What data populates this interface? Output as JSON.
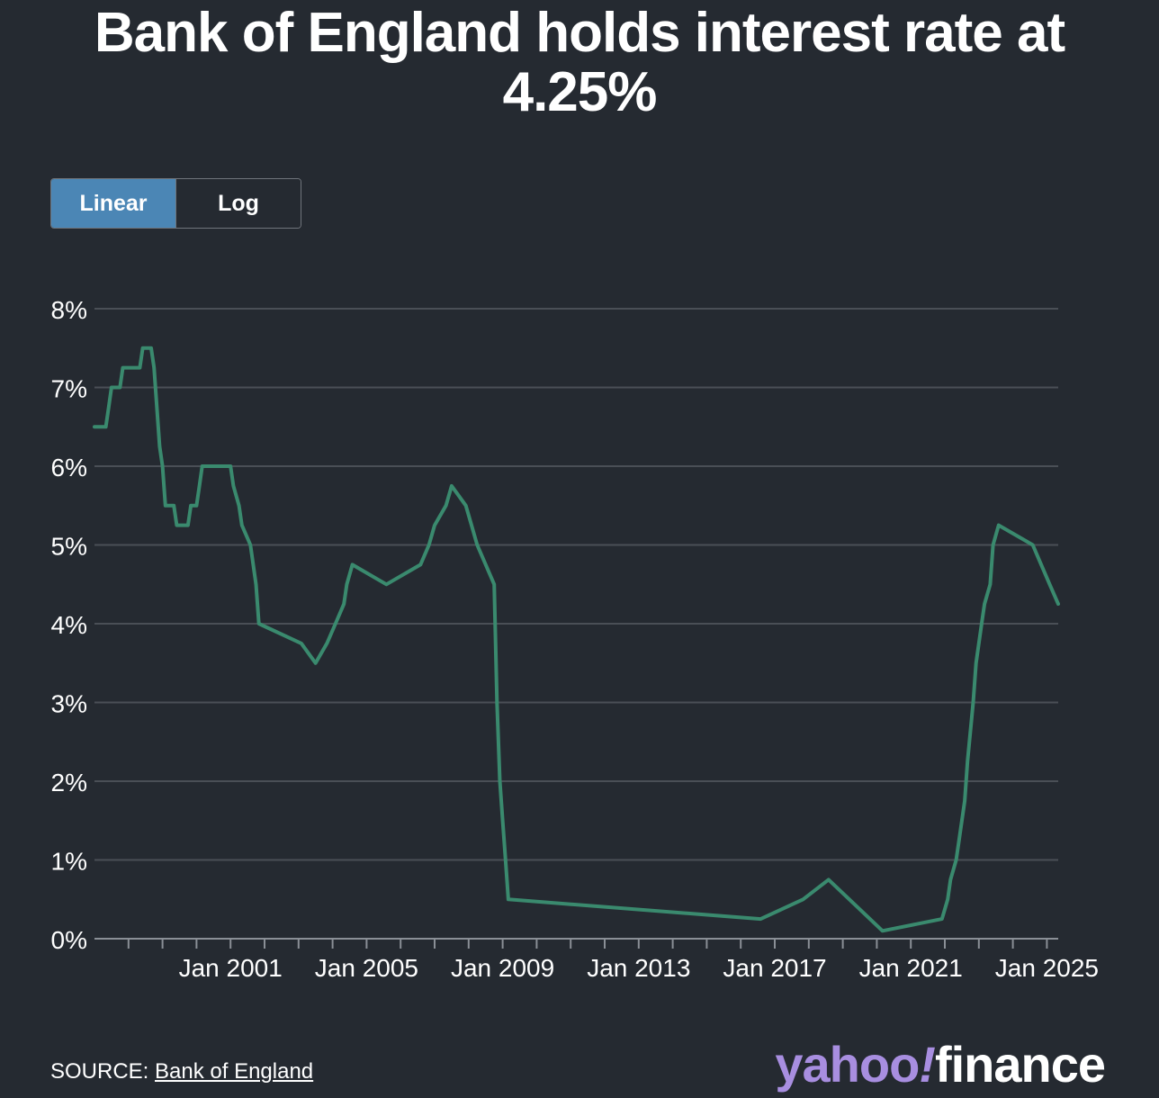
{
  "title": "Bank of England holds interest rate at 4.25%",
  "toggle": {
    "linear_label": "Linear",
    "log_label": "Log",
    "selected": "Linear"
  },
  "source": {
    "prefix": "SOURCE: ",
    "link_text": "Bank of England"
  },
  "logo": {
    "yahoo": "yahoo",
    "bang": "!",
    "finance": "finance"
  },
  "colors": {
    "background": "#252a31",
    "line": "#3a8a6e",
    "grid": "#4a4f56",
    "toggle_active": "#4b86b5",
    "logo_purple": "#a88ee0"
  },
  "chart_data": {
    "type": "line",
    "title": "Bank of England holds interest rate at 4.25%",
    "xlabel": "",
    "ylabel": "",
    "ylim": [
      0,
      8
    ],
    "xlim": [
      "1997-01",
      "2025-05"
    ],
    "yticks": [
      "0%",
      "1%",
      "2%",
      "3%",
      "4%",
      "5%",
      "6%",
      "7%",
      "8%"
    ],
    "xtick_labels": [
      "Jan 2001",
      "Jan 2005",
      "Jan 2009",
      "Jan 2013",
      "Jan 2017",
      "Jan 2021",
      "Jan 2025"
    ],
    "grid": true,
    "legend": "none",
    "series": [
      {
        "x": [
          "1997-01",
          "1997-02",
          "1997-05",
          "1997-06",
          "1997-07",
          "1997-08",
          "1997-10",
          "1997-11",
          "1998-01",
          "1998-05",
          "1998-06",
          "1998-09",
          "1998-10",
          "1998-11",
          "1998-12",
          "1999-01",
          "1999-02",
          "1999-05",
          "1999-06",
          "1999-09",
          "1999-10",
          "1999-11",
          "2000-01",
          "2000-02",
          "2000-03",
          "2001-01",
          "2001-02",
          "2001-04",
          "2001-05",
          "2001-08",
          "2001-09",
          "2001-10",
          "2001-11",
          "2003-02",
          "2003-07",
          "2003-11",
          "2004-02",
          "2004-05",
          "2004-06",
          "2004-08",
          "2005-08",
          "2006-08",
          "2006-11",
          "2007-01",
          "2007-05",
          "2007-07",
          "2007-12",
          "2008-02",
          "2008-04",
          "2008-10",
          "2008-11",
          "2008-12",
          "2009-01",
          "2009-02",
          "2009-03",
          "2016-08",
          "2017-11",
          "2018-08",
          "2020-03",
          "2021-12",
          "2022-02",
          "2022-03",
          "2022-05",
          "2022-06",
          "2022-08",
          "2022-09",
          "2022-11",
          "2022-12",
          "2023-02",
          "2023-03",
          "2023-05",
          "2023-06",
          "2023-08",
          "2024-08",
          "2024-11",
          "2025-02",
          "2025-05"
        ],
        "values": [
          6.5,
          6.5,
          6.5,
          6.75,
          7.0,
          7.0,
          7.0,
          7.25,
          7.25,
          7.25,
          7.5,
          7.5,
          7.25,
          6.75,
          6.25,
          6.0,
          5.5,
          5.5,
          5.25,
          5.25,
          5.25,
          5.5,
          5.5,
          5.75,
          6.0,
          6.0,
          5.75,
          5.5,
          5.25,
          5.0,
          4.75,
          4.5,
          4.0,
          3.75,
          3.5,
          3.75,
          4.0,
          4.25,
          4.5,
          4.75,
          4.5,
          4.75,
          5.0,
          5.25,
          5.5,
          5.75,
          5.5,
          5.25,
          5.0,
          4.5,
          3.0,
          2.0,
          1.5,
          1.0,
          0.5,
          0.25,
          0.5,
          0.75,
          0.1,
          0.25,
          0.5,
          0.75,
          1.0,
          1.25,
          1.75,
          2.25,
          3.0,
          3.5,
          4.0,
          4.25,
          4.5,
          5.0,
          5.25,
          5.0,
          4.75,
          4.5,
          4.25
        ]
      }
    ]
  }
}
